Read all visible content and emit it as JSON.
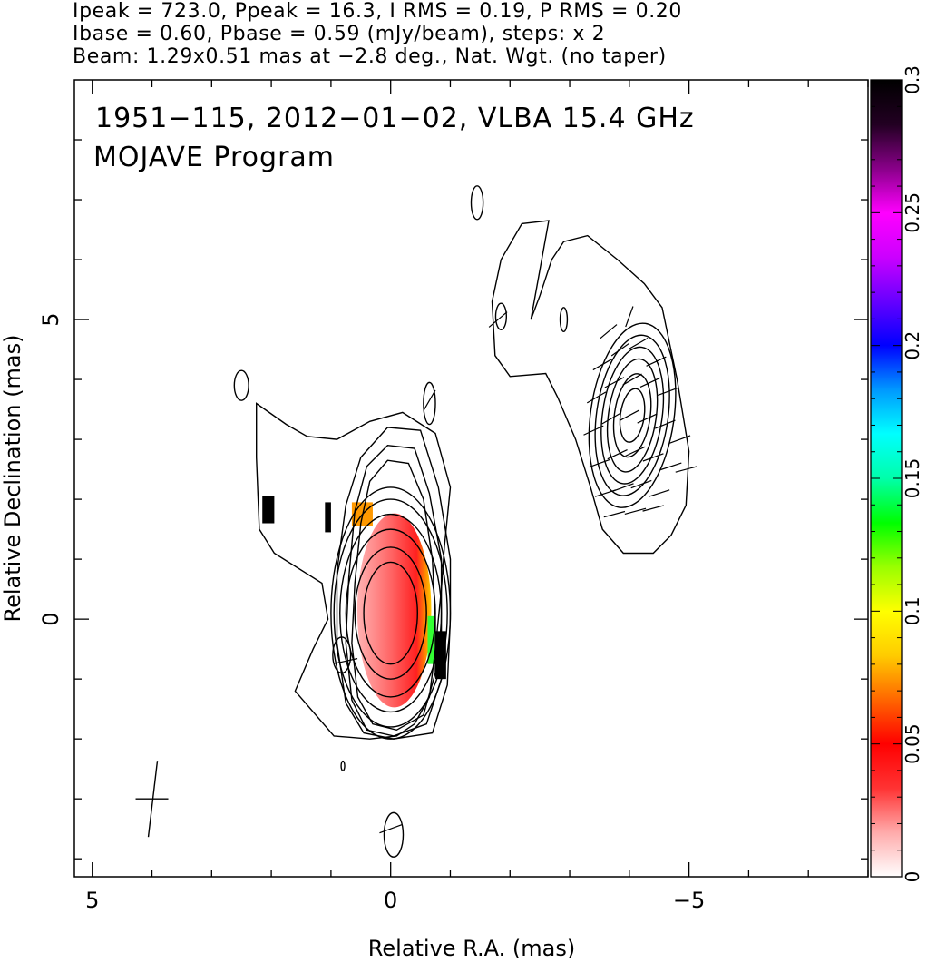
{
  "header": {
    "line1": "Ipeak = 723.0, Ppeak = 16.3, I RMS = 0.19, P RMS = 0.20",
    "line2": "Ibase = 0.60, Pbase = 0.59 (mJy/beam), steps: x 2",
    "line3": "Beam: 1.29x0.51 mas at −2.8 deg., Nat. Wgt. (no taper)"
  },
  "chart_data": {
    "type": "heatmap",
    "title": "1951−115, 2012−01−02, VLBA 15.4 GHz",
    "subtitle": "MOJAVE Program",
    "xlabel": "Relative R.A. (mas)",
    "ylabel": "Relative Declination (mas)",
    "xlim": [
      5.3,
      -8.0
    ],
    "ylim": [
      -4.3,
      9.0
    ],
    "x_ticks": [
      5,
      0,
      -5
    ],
    "x_tick_labels": [
      "5",
      "0",
      "−5"
    ],
    "y_ticks": [
      0,
      5
    ],
    "y_tick_labels": [
      "0",
      "5"
    ],
    "colorbar": {
      "min": 0,
      "max": 0.3,
      "ticks": [
        0,
        0.05,
        0.1,
        0.15,
        0.2,
        0.25,
        0.3
      ],
      "tick_labels": [
        "0",
        "0.05",
        "0.1",
        "0.15",
        "0.2",
        "0.25",
        "0.3"
      ],
      "colors": [
        "#ffffff",
        "#ffaaaa",
        "#ff3333",
        "#ff0000",
        "#ff6600",
        "#ffcc00",
        "#ffff00",
        "#99ff00",
        "#00ff00",
        "#00ffaa",
        "#00ffff",
        "#0099ff",
        "#0000ff",
        "#6600ff",
        "#cc00ff",
        "#ff00ff",
        "#880088",
        "#220022",
        "#000000"
      ]
    },
    "core": {
      "x": 0.0,
      "y": 0.1
    },
    "core_contours": [
      {
        "rx": 0.45,
        "ry": 0.85
      },
      {
        "rx": 0.6,
        "ry": 1.1
      },
      {
        "rx": 0.75,
        "ry": 1.4
      },
      {
        "rx": 0.85,
        "ry": 1.65
      },
      {
        "rx": 0.95,
        "ry": 1.9
      },
      {
        "rx": 1.0,
        "ry": 2.1
      }
    ],
    "core_outer_contours": [
      [
        [
          -0.3,
          2.6
        ],
        [
          -0.55,
          2.0
        ],
        [
          -0.7,
          1.0
        ],
        [
          -0.75,
          0.0
        ],
        [
          -0.75,
          -0.9
        ],
        [
          -0.55,
          -1.6
        ],
        [
          -0.1,
          -1.85
        ],
        [
          0.3,
          -1.75
        ],
        [
          0.55,
          -1.3
        ],
        [
          0.65,
          -0.4
        ],
        [
          0.6,
          0.6
        ],
        [
          0.5,
          1.6
        ],
        [
          0.35,
          2.3
        ],
        [
          0.05,
          2.65
        ]
      ],
      [
        [
          -0.4,
          2.85
        ],
        [
          -0.65,
          2.1
        ],
        [
          -0.85,
          1.0
        ],
        [
          -0.85,
          0.0
        ],
        [
          -0.85,
          -1.0
        ],
        [
          -0.6,
          -1.75
        ],
        [
          -0.05,
          -1.95
        ],
        [
          0.4,
          -1.85
        ],
        [
          0.65,
          -1.35
        ],
        [
          0.75,
          -0.4
        ],
        [
          0.7,
          0.7
        ],
        [
          0.6,
          1.8
        ],
        [
          0.4,
          2.55
        ],
        [
          0.05,
          2.9
        ]
      ],
      [
        [
          -0.5,
          3.15
        ],
        [
          -0.8,
          2.2
        ],
        [
          -1.0,
          1.0
        ],
        [
          -1.0,
          0.0
        ],
        [
          -0.95,
          -1.1
        ],
        [
          -0.7,
          -1.9
        ],
        [
          -0.05,
          -2.0
        ],
        [
          0.45,
          -1.9
        ],
        [
          0.75,
          -1.4
        ],
        [
          0.9,
          -0.4
        ],
        [
          0.9,
          0.8
        ],
        [
          0.75,
          1.9
        ],
        [
          0.5,
          2.7
        ],
        [
          0.05,
          3.2
        ]
      ]
    ],
    "outer_contour": [
      [
        1.6,
        -1.2
      ],
      [
        0.95,
        -1.95
      ],
      [
        0.35,
        -2.0
      ],
      [
        -0.1,
        -1.95
      ],
      [
        -0.4,
        -1.75
      ],
      [
        -0.65,
        -1.3
      ],
      [
        -0.75,
        -0.5
      ],
      [
        -0.85,
        0.5
      ],
      [
        -0.9,
        1.2
      ],
      [
        -1.0,
        2.2
      ],
      [
        -0.75,
        3.1
      ],
      [
        -0.2,
        3.45
      ],
      [
        0.35,
        3.3
      ],
      [
        0.9,
        3.0
      ],
      [
        1.4,
        3.05
      ],
      [
        1.75,
        3.25
      ],
      [
        2.25,
        3.6
      ],
      [
        2.25,
        2.7
      ],
      [
        2.2,
        1.5
      ],
      [
        1.95,
        1.1
      ],
      [
        1.15,
        0.6
      ],
      [
        1.05,
        0.0
      ],
      [
        1.3,
        -0.5
      ],
      [
        1.6,
        -1.2
      ]
    ],
    "jet_contour": [
      [
        -2.35,
        5.0
      ],
      [
        -2.5,
        5.4
      ],
      [
        -2.7,
        6.0
      ],
      [
        -2.9,
        6.3
      ],
      [
        -3.3,
        6.4
      ],
      [
        -3.8,
        6.0
      ],
      [
        -4.25,
        5.6
      ],
      [
        -4.55,
        5.2
      ],
      [
        -4.8,
        4.0
      ],
      [
        -5.0,
        2.8
      ],
      [
        -4.95,
        1.9
      ],
      [
        -4.7,
        1.4
      ],
      [
        -4.4,
        1.1
      ],
      [
        -3.9,
        1.1
      ],
      [
        -3.55,
        1.5
      ],
      [
        -3.35,
        2.2
      ],
      [
        -3.1,
        3.0
      ],
      [
        -2.8,
        3.7
      ],
      [
        -2.6,
        4.1
      ],
      [
        -2.0,
        4.05
      ],
      [
        -1.75,
        4.4
      ],
      [
        -1.7,
        5.3
      ],
      [
        -1.85,
        6.0
      ],
      [
        -2.2,
        6.6
      ],
      [
        -2.65,
        6.65
      ]
    ],
    "jet_knot": {
      "x": -4.05,
      "y": 3.4
    },
    "jet_contours": [
      {
        "rx": 0.2,
        "ry": 0.45
      },
      {
        "rx": 0.3,
        "ry": 0.7
      },
      {
        "rx": 0.4,
        "ry": 0.95
      },
      {
        "rx": 0.5,
        "ry": 1.15
      },
      {
        "rx": 0.6,
        "ry": 1.35
      },
      {
        "rx": 0.7,
        "ry": 1.55
      }
    ],
    "islands": [
      {
        "x": -1.45,
        "y": 6.95,
        "rx": 0.1,
        "ry": 0.28
      },
      {
        "x": -1.85,
        "y": 5.05,
        "rx": 0.09,
        "ry": 0.22
      },
      {
        "x": -2.9,
        "y": 5.0,
        "rx": 0.06,
        "ry": 0.2
      },
      {
        "x": 2.5,
        "y": 3.9,
        "rx": 0.12,
        "ry": 0.25
      },
      {
        "x": -0.65,
        "y": 3.6,
        "rx": 0.1,
        "ry": 0.35
      },
      {
        "x": 0.82,
        "y": -0.6,
        "rx": 0.15,
        "ry": 0.3
      },
      {
        "x": 0.8,
        "y": -2.45,
        "rx": 0.03,
        "ry": 0.08
      },
      {
        "x": -0.05,
        "y": -3.6,
        "rx": 0.16,
        "ry": 0.37
      }
    ],
    "evpa_sticks_jet": [
      [
        -3.55,
        4.25,
        30
      ],
      [
        -3.85,
        4.5,
        35
      ],
      [
        -4.15,
        4.6,
        30
      ],
      [
        -4.45,
        4.3,
        25
      ],
      [
        -3.45,
        3.7,
        30
      ],
      [
        -3.75,
        3.95,
        28
      ],
      [
        -4.05,
        4.0,
        30
      ],
      [
        -4.35,
        3.95,
        25
      ],
      [
        -4.65,
        3.8,
        20
      ],
      [
        -3.4,
        3.15,
        25
      ],
      [
        -3.7,
        3.35,
        30
      ],
      [
        -4.0,
        3.4,
        28
      ],
      [
        -4.3,
        3.35,
        25
      ],
      [
        -4.6,
        3.25,
        22
      ],
      [
        -4.85,
        3.0,
        20
      ],
      [
        -3.5,
        2.6,
        20
      ],
      [
        -3.8,
        2.75,
        25
      ],
      [
        -4.1,
        2.8,
        25
      ],
      [
        -4.4,
        2.7,
        20
      ],
      [
        -4.7,
        2.55,
        18
      ],
      [
        -4.95,
        2.5,
        15
      ],
      [
        -3.6,
        2.1,
        18
      ],
      [
        -3.9,
        2.2,
        20
      ],
      [
        -4.2,
        2.25,
        20
      ],
      [
        -4.5,
        2.1,
        18
      ],
      [
        -3.75,
        1.75,
        15
      ],
      [
        -4.1,
        1.8,
        15
      ],
      [
        -4.4,
        1.85,
        15
      ],
      [
        -4.0,
        5.05,
        70
      ],
      [
        -3.65,
        4.8,
        40
      ]
    ],
    "evpa_sticks_other": [
      [
        -1.8,
        5.0,
        40
      ],
      [
        -0.65,
        3.65,
        60
      ],
      [
        0.75,
        -0.7,
        12
      ],
      [
        0.0,
        -3.5,
        20
      ]
    ],
    "polarization_blocks": [
      {
        "x": 2.15,
        "y": 2.05,
        "w": 0.2,
        "h": 0.45
      },
      {
        "x": 1.1,
        "y": 1.95,
        "w": 0.1,
        "h": 0.5
      },
      {
        "x": -0.75,
        "y": -0.2,
        "w": 0.18,
        "h": 0.8
      }
    ],
    "beam_cross": {
      "x": 4.0,
      "y": -3.0
    }
  }
}
